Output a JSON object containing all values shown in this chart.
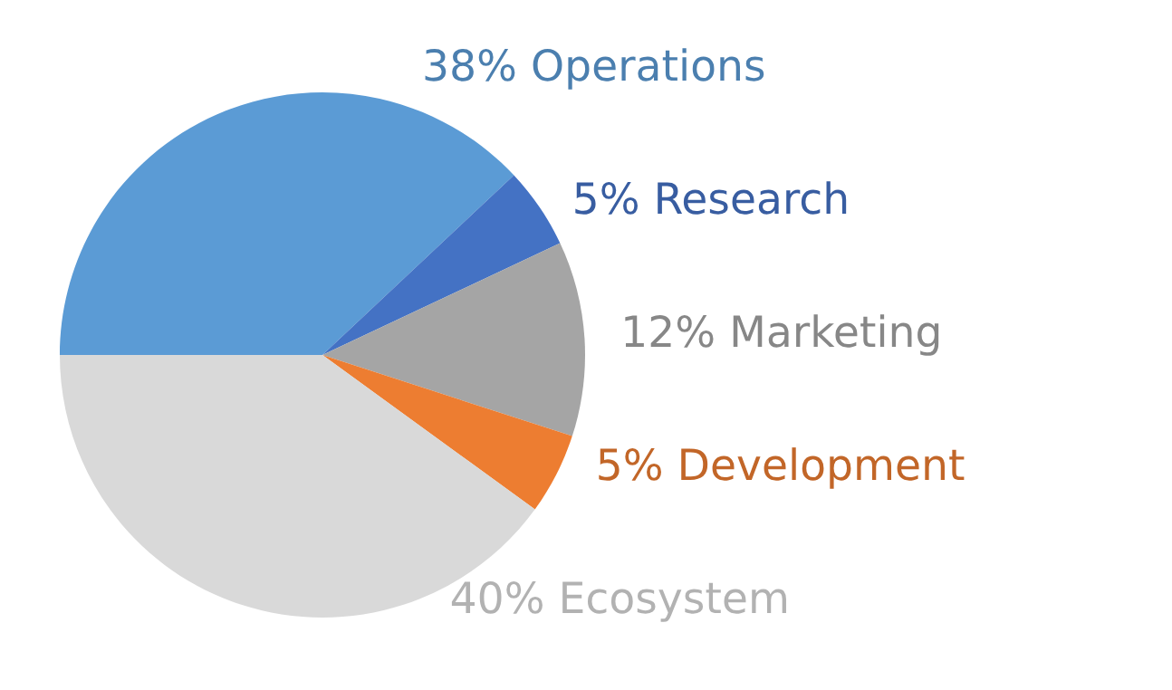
{
  "chart_data": {
    "type": "pie",
    "categories": [
      "Operations",
      "Research",
      "Marketing",
      "Development",
      "Ecosystem"
    ],
    "values": [
      38,
      5,
      12,
      5,
      40
    ],
    "value_labels": [
      "38%",
      "5%",
      "12%",
      "5%",
      "40%"
    ],
    "colors": [
      "#5b9bd5",
      "#4472c4",
      "#a5a5a5",
      "#ed7d31",
      "#d9d9d9"
    ]
  }
}
